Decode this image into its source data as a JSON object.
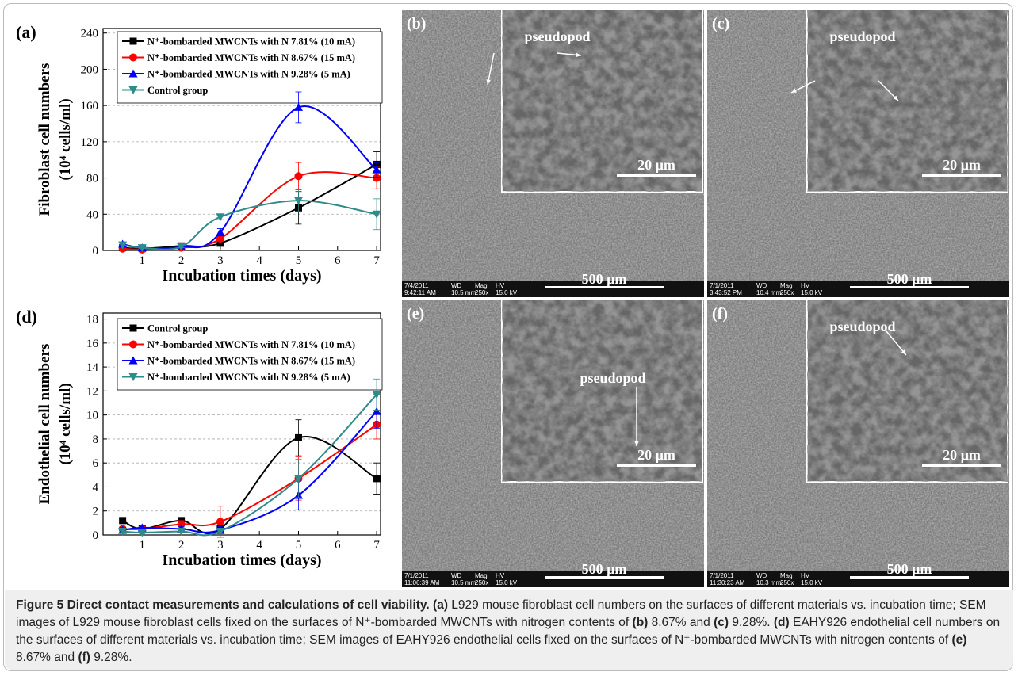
{
  "chart_data": [
    {
      "type": "line",
      "panel_label": "(a)",
      "ylabel": [
        "Fibroblast cell numbers",
        "(10⁴ cells/ml)"
      ],
      "xlabel": "Incubation times (days)",
      "x": [
        0.5,
        1,
        2,
        3,
        5,
        7
      ],
      "xlim": [
        0,
        7.1
      ],
      "xticks": [
        1,
        2,
        3,
        4,
        5,
        6,
        7
      ],
      "ylim": [
        0,
        245
      ],
      "yticks": [
        0,
        40,
        80,
        120,
        160,
        200,
        240
      ],
      "grid": true,
      "series": [
        {
          "name": "N⁺-bombarded MWCNTs with N 7.81% (10 mA)",
          "color": "#000000",
          "marker": "square",
          "values": [
            3,
            2,
            5,
            8,
            47,
            95
          ],
          "errors": [
            1,
            1,
            1,
            2,
            18,
            14
          ]
        },
        {
          "name": "N⁺-bombarded MWCNTs with N 8.67% (15 mA)",
          "color": "#ff0000",
          "marker": "circle",
          "values": [
            2,
            1,
            3,
            13,
            82,
            80
          ],
          "errors": [
            1,
            1,
            1,
            3,
            15,
            12
          ]
        },
        {
          "name": "N⁺-bombarded MWCNTs with N 9.28% (5 mA)",
          "color": "#0000ff",
          "marker": "triangle",
          "values": [
            7,
            3,
            4,
            20,
            158,
            89
          ],
          "errors": [
            1,
            1,
            1,
            4,
            17,
            8
          ]
        },
        {
          "name": "Control group",
          "color": "#2e8b8b",
          "marker": "down-triangle",
          "values": [
            6,
            3,
            4,
            37,
            55,
            40
          ],
          "errors": [
            1,
            1,
            1,
            3,
            12,
            17
          ]
        }
      ]
    },
    {
      "type": "line",
      "panel_label": "(d)",
      "ylabel": [
        "Endothelial cell numbers",
        "(10⁴ cells/ml)"
      ],
      "xlabel": "Incubation times (days)",
      "x": [
        0.5,
        1,
        2,
        3,
        5,
        7
      ],
      "xlim": [
        0,
        7.1
      ],
      "xticks": [
        1,
        2,
        3,
        4,
        5,
        6,
        7
      ],
      "ylim": [
        0,
        18.5
      ],
      "yticks": [
        0,
        2,
        4,
        6,
        8,
        10,
        12,
        14,
        16,
        18
      ],
      "grid": true,
      "series": [
        {
          "name": "Control group",
          "color": "#000000",
          "marker": "square",
          "values": [
            1.2,
            0.5,
            1.2,
            0.5,
            8.1,
            4.7
          ],
          "errors": [
            0.2,
            0.2,
            0.2,
            0.3,
            1.5,
            1.3
          ]
        },
        {
          "name": "N⁺-bombarded MWCNTs with N 7.81% (10 mA)",
          "color": "#ff0000",
          "marker": "circle",
          "values": [
            0.5,
            0.5,
            0.9,
            1.1,
            4.7,
            9.2
          ],
          "errors": [
            0.2,
            0.2,
            0.3,
            1.3,
            1.8,
            1.2
          ]
        },
        {
          "name": "N⁺-bombarded MWCNTs with N 8.67% (15 mA)",
          "color": "#0000ff",
          "marker": "triangle",
          "values": [
            0.4,
            0.6,
            0.5,
            0.4,
            3.3,
            10.3
          ],
          "errors": [
            0.2,
            0.2,
            0.2,
            0.3,
            1.2,
            1.4
          ]
        },
        {
          "name": "N⁺-bombarded MWCNTs with N 9.28% (5 mA)",
          "color": "#2e8b8b",
          "marker": "down-triangle",
          "values": [
            0.3,
            0.2,
            0.3,
            0.3,
            4.7,
            11.7
          ],
          "errors": [
            0.1,
            0.1,
            0.1,
            0.2,
            1.6,
            1.3
          ]
        }
      ]
    }
  ],
  "images": [
    {
      "label": "(b)",
      "inset_label": "pseudopod",
      "inset_scale": "20 µm",
      "scale": "500 µm",
      "info": [
        "7/4/2011",
        "WD",
        "Mag",
        "HV",
        "9:42:11 AM",
        "10.5 mm",
        "250x",
        "15.0 kV"
      ]
    },
    {
      "label": "(c)",
      "inset_label": "pseudopod",
      "inset_scale": "20 µm",
      "scale": "500 µm",
      "info": [
        "7/1/2011",
        "WD",
        "Mag",
        "HV",
        "3:43:52 PM",
        "10.4 mm",
        "250x",
        "15.0 kV"
      ]
    },
    {
      "label": "(e)",
      "inset_label": "pseudopod",
      "inset_scale": "20 µm",
      "scale": "500 µm",
      "info": [
        "7/1/2011",
        "WD",
        "Mag",
        "HV",
        "11:06:39 AM",
        "10.5 mm",
        "250x",
        "15.0 kV"
      ]
    },
    {
      "label": "(f)",
      "inset_label": "pseudopod",
      "inset_scale": "20 µm",
      "scale": "500 µm",
      "info": [
        "7/1/2011",
        "WD",
        "Mag",
        "HV",
        "11:30:23 AM",
        "10.3 mm",
        "250x",
        "15.0 kV"
      ]
    }
  ],
  "caption": {
    "title": "Figure 5 Direct contact measurements and calculations of cell viability.",
    "parts": [
      {
        "text": "(a)",
        "bold": true
      },
      {
        "text": " L929 mouse fibroblast cell numbers on the surfaces of different materials vs. incubation time; SEM images of L929 mouse fibroblast cells fixed on the surfaces of N⁺-bombarded MWCNTs with nitrogen contents of ",
        "bold": false
      },
      {
        "text": "(b)",
        "bold": true
      },
      {
        "text": " 8.67% and ",
        "bold": false
      },
      {
        "text": "(c)",
        "bold": true
      },
      {
        "text": " 9.28%. ",
        "bold": false
      },
      {
        "text": "(d)",
        "bold": true
      },
      {
        "text": " EAHY926 endothelial cell numbers on the surfaces of different materials vs. incubation time; SEM images of EAHY926 endothelial cells fixed on the surfaces of N⁺-bombarded MWCNTs with nitrogen contents of ",
        "bold": false
      },
      {
        "text": "(e)",
        "bold": true
      },
      {
        "text": " 8.67% and ",
        "bold": false
      },
      {
        "text": "(f)",
        "bold": true
      },
      {
        "text": " 9.28%.",
        "bold": false
      }
    ]
  }
}
